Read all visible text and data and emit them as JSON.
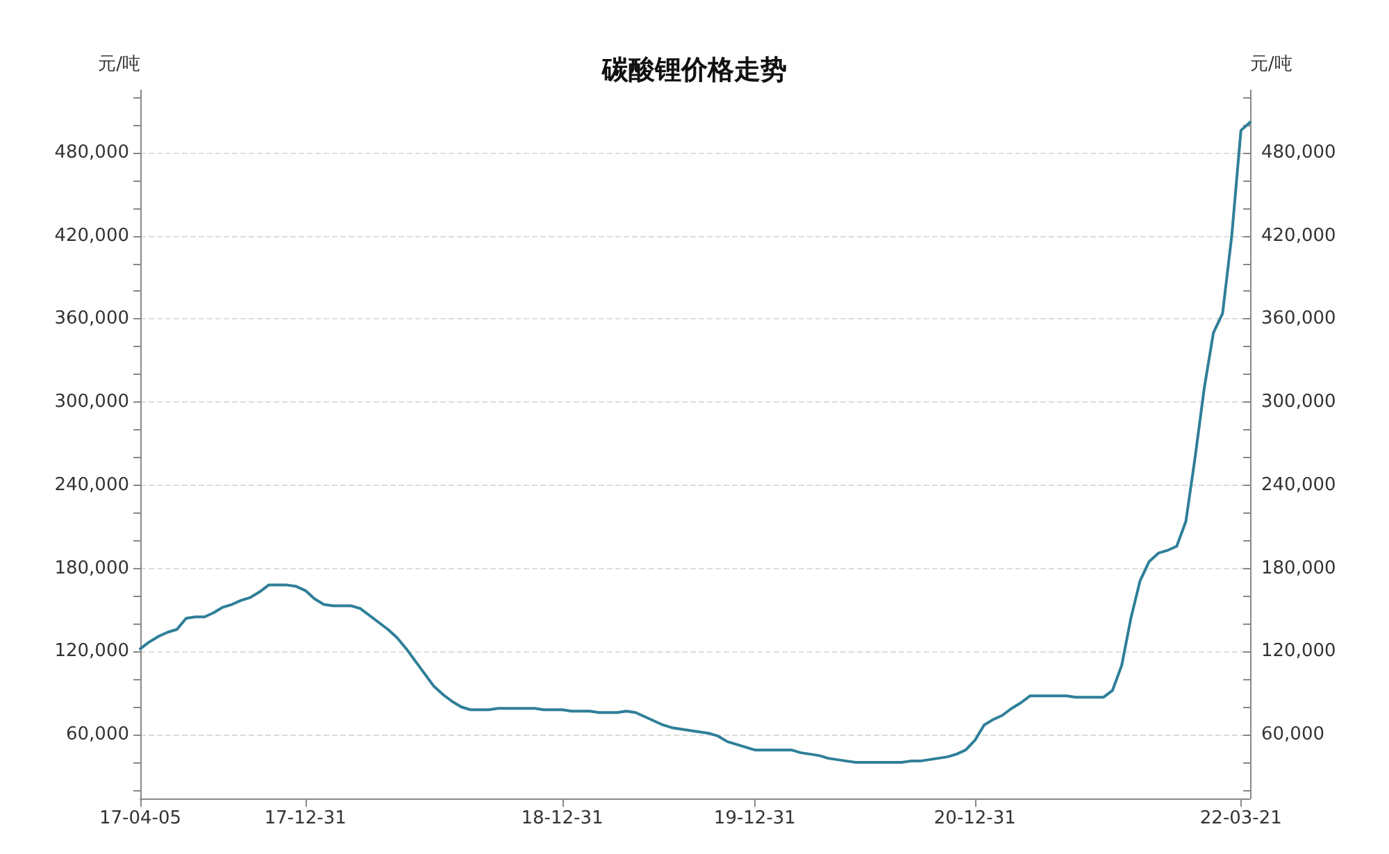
{
  "chart_data": {
    "type": "line",
    "title": "碳酸锂价格走势",
    "ylabel": "元/吨",
    "y2label": "元/吨",
    "categories": [
      "17-04-05",
      null,
      null,
      null,
      null,
      null,
      null,
      null,
      null,
      null,
      null,
      null,
      null,
      null,
      null,
      null,
      null,
      null,
      "17-12-31",
      null,
      null,
      null,
      null,
      null,
      null,
      null,
      null,
      null,
      null,
      null,
      null,
      null,
      null,
      null,
      null,
      null,
      null,
      null,
      null,
      null,
      null,
      null,
      null,
      null,
      null,
      null,
      "18-12-31",
      null,
      null,
      null,
      null,
      null,
      null,
      null,
      null,
      null,
      null,
      null,
      null,
      null,
      null,
      null,
      null,
      null,
      null,
      null,
      null,
      "19-12-31",
      null,
      null,
      null,
      null,
      null,
      null,
      null,
      null,
      null,
      null,
      null,
      null,
      null,
      null,
      null,
      null,
      null,
      null,
      null,
      null,
      null,
      null,
      null,
      "20-12-31",
      null,
      null,
      null,
      null,
      null,
      null,
      null,
      null,
      null,
      null,
      null,
      null,
      null,
      null,
      null,
      null,
      null,
      null,
      null,
      null,
      null,
      null,
      null,
      null,
      null,
      null,
      null,
      null,
      "22-03-21",
      null
    ],
    "series": [
      {
        "color": "#2f7f98",
        "values": [
          122000,
          127000,
          131000,
          134000,
          136000,
          144000,
          145000,
          145000,
          148000,
          152000,
          154000,
          157000,
          159000,
          163000,
          168000,
          168000,
          168000,
          167000,
          164000,
          158000,
          154000,
          153000,
          153000,
          153000,
          151000,
          146000,
          141000,
          136000,
          130000,
          122000,
          113000,
          104000,
          95000,
          89000,
          84000,
          80000,
          78000,
          78000,
          78000,
          79000,
          79000,
          79000,
          79000,
          79000,
          78000,
          78000,
          78000,
          77000,
          77000,
          77000,
          76000,
          76000,
          76000,
          77000,
          76000,
          73000,
          70000,
          67000,
          65000,
          64000,
          63000,
          62000,
          61000,
          59000,
          55000,
          53000,
          51000,
          49000,
          49000,
          49000,
          49000,
          49000,
          47000,
          46000,
          45000,
          43000,
          42000,
          41000,
          40000,
          40000,
          40000,
          40000,
          40000,
          40000,
          41000,
          41000,
          42000,
          43000,
          44000,
          46000,
          49000,
          56000,
          67000,
          71000,
          74000,
          79000,
          83000,
          88000,
          88000,
          88000,
          88000,
          88000,
          87000,
          87000,
          87000,
          87000,
          92000,
          110000,
          144000,
          171000,
          185000,
          191000,
          193000,
          196000,
          214000,
          260000,
          310000,
          350000,
          364000,
          420000,
          496000,
          502000
        ]
      }
    ],
    "ylim": [
      14000,
      525000
    ],
    "yticks": [
      {
        "value": 20000,
        "label": null
      },
      {
        "value": 40000,
        "label": null
      },
      "60,000",
      {
        "value": 80000,
        "label": null
      },
      {
        "value": 100000,
        "label": null
      },
      {
        "value": 120000,
        "label": "120,000"
      },
      {
        "value": 140000,
        "label": null
      },
      {
        "value": 160000,
        "label": null
      },
      {
        "value": 180000,
        "label": "180,000"
      },
      {
        "value": 200000,
        "label": null
      },
      {
        "value": 220000,
        "label": null
      },
      {
        "value": 240000,
        "label": "240,000"
      },
      {
        "value": 260000,
        "label": null
      },
      {
        "value": 280000,
        "label": null
      },
      {
        "value": 300000,
        "label": "300,000"
      },
      {
        "value": 320000,
        "label": null
      },
      {
        "value": 340000,
        "label": null
      },
      {
        "value": 360000,
        "label": "360,000"
      },
      {
        "value": 380000,
        "label": null
      },
      {
        "value": 400000,
        "label": null
      },
      {
        "value": 420000,
        "label": "420,000"
      },
      {
        "value": 440000,
        "label": null
      },
      {
        "value": 460000,
        "label": null
      },
      {
        "value": 480000,
        "label": "480,000"
      },
      {
        "value": 500000,
        "label": null
      },
      {
        "value": 520000,
        "label": null
      }
    ],
    "y2lim": [
      14000,
      525000
    ],
    "y2ticks": [
      {
        "value": 20000,
        "label": null
      },
      {
        "value": 40000,
        "label": null
      },
      {
        "value": 60000,
        "label": "60,000"
      },
      {
        "value": 80000,
        "label": null
      },
      {
        "value": 100000,
        "label": null
      },
      {
        "value": 120000,
        "label": "120,000"
      },
      {
        "value": 140000,
        "label": null
      },
      {
        "value": 160000,
        "label": null
      },
      {
        "value": 180000,
        "label": "180,000"
      },
      {
        "value": 200000,
        "label": null
      },
      {
        "value": 220000,
        "label": null
      },
      {
        "value": 240000,
        "label": "240,000"
      },
      {
        "value": 260000,
        "label": null
      },
      {
        "value": 280000,
        "label": null
      },
      {
        "value": 300000,
        "label": "300,000"
      },
      {
        "value": 320000,
        "label": null
      },
      {
        "value": 340000,
        "label": null
      },
      {
        "value": 360000,
        "label": "360,000"
      },
      {
        "value": 380000,
        "label": null
      },
      {
        "value": 400000,
        "label": null
      },
      {
        "value": 420000,
        "label": "420,000"
      },
      {
        "value": 440000,
        "label": null
      },
      {
        "value": 460000,
        "label": null
      },
      {
        "value": 480000,
        "label": "480,000"
      },
      {
        "value": 500000,
        "label": null
      },
      {
        "value": 520000,
        "label": null
      }
    ],
    "grid": "y",
    "marker": "none",
    "line_style": "solid"
  }
}
